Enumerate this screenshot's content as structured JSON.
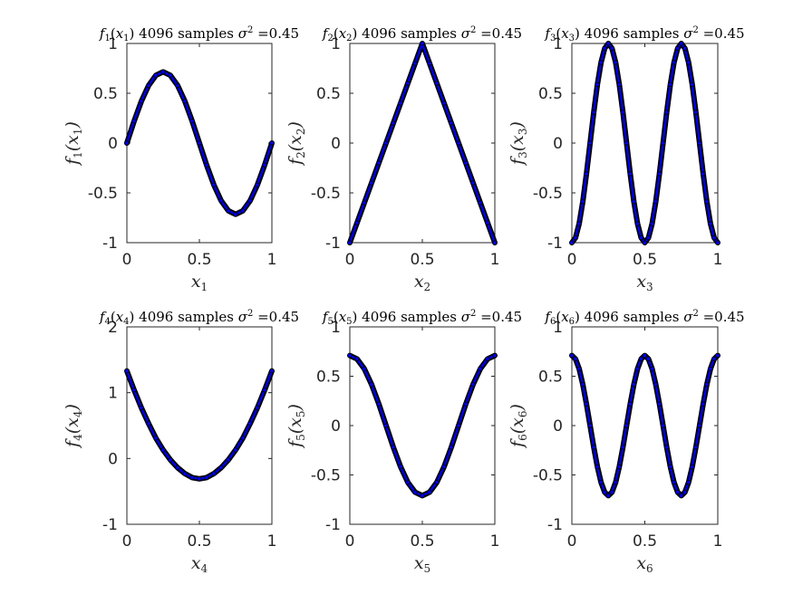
{
  "colors": {
    "background": "#ffffff",
    "axis": "#262626",
    "marker_edge": "#000000",
    "curve": "#0000ff"
  },
  "chart_data": [
    {
      "type": "line",
      "title": "f1(x1) 4096 samples σ^2 =0.45",
      "title_parts": {
        "func": "f",
        "sub": "1",
        "var": "x",
        "vsub": "1",
        "rest": "4096 samples",
        "sigma": "σ",
        "sup": "2",
        "eq": "=0.45"
      },
      "xlabel": "x1",
      "ylabel": "f1(x1)",
      "xlim": [
        0,
        1
      ],
      "ylim": [
        -1,
        1
      ],
      "xticks": [
        0,
        0.5,
        1
      ],
      "xticklabels": [
        "0",
        "0.5",
        "1"
      ],
      "yticks": [
        -1,
        -0.5,
        0,
        0.5,
        1
      ],
      "yticklabels": [
        "-1",
        "-0.5",
        "0",
        "0.5",
        "1"
      ],
      "series": [
        {
          "x": [
            0,
            0.05,
            0.1,
            0.15,
            0.2,
            0.25,
            0.3,
            0.35,
            0.4,
            0.45,
            0.5,
            0.55,
            0.6,
            0.65,
            0.7,
            0.75,
            0.8,
            0.85,
            0.9,
            0.95,
            1
          ],
          "y": [
            0,
            0.221,
            0.42,
            0.578,
            0.68,
            0.715,
            0.68,
            0.578,
            0.42,
            0.221,
            0,
            -0.221,
            -0.42,
            -0.578,
            -0.68,
            -0.715,
            -0.68,
            -0.578,
            -0.42,
            -0.221,
            0
          ]
        }
      ]
    },
    {
      "type": "line",
      "title": "f2(x2) 4096 samples σ^2 =0.45",
      "title_parts": {
        "func": "f",
        "sub": "2",
        "var": "x",
        "vsub": "2",
        "rest": "4096 samples",
        "sigma": "σ",
        "sup": "2",
        "eq": "=0.45"
      },
      "xlabel": "x2",
      "ylabel": "f2(x2)",
      "xlim": [
        0,
        1
      ],
      "ylim": [
        -1,
        1
      ],
      "xticks": [
        0,
        0.5,
        1
      ],
      "xticklabels": [
        "0",
        "0.5",
        "1"
      ],
      "yticks": [
        -1,
        -0.5,
        0,
        0.5,
        1
      ],
      "yticklabels": [
        "-1",
        "-0.5",
        "0",
        "0.5",
        "1"
      ],
      "series": [
        {
          "x": [
            0,
            0.05,
            0.1,
            0.15,
            0.2,
            0.25,
            0.3,
            0.35,
            0.4,
            0.45,
            0.5,
            0.55,
            0.6,
            0.65,
            0.7,
            0.75,
            0.8,
            0.85,
            0.9,
            0.95,
            1
          ],
          "y": [
            -1,
            -0.8,
            -0.6,
            -0.4,
            -0.2,
            0,
            0.2,
            0.4,
            0.6,
            0.8,
            1,
            0.8,
            0.6,
            0.4,
            0.2,
            0,
            -0.2,
            -0.4,
            -0.6,
            -0.8,
            -1
          ]
        }
      ]
    },
    {
      "type": "line",
      "title": "f3(x3) 4096 samples σ^2 =0.45",
      "title_parts": {
        "func": "f",
        "sub": "3",
        "var": "x",
        "vsub": "3",
        "rest": "4096 samples",
        "sigma": "σ",
        "sup": "2",
        "eq": "=0.45"
      },
      "xlabel": "x3",
      "ylabel": "f3(x3)",
      "xlim": [
        0,
        1
      ],
      "ylim": [
        -1,
        1
      ],
      "xticks": [
        0,
        0.5,
        1
      ],
      "xticklabels": [
        "0",
        "0.5",
        "1"
      ],
      "yticks": [
        -1,
        -0.5,
        0,
        0.5,
        1
      ],
      "yticklabels": [
        "-1",
        "-0.5",
        "0",
        "0.5",
        "1"
      ],
      "series": [
        {
          "x": [
            0,
            0.025,
            0.05,
            0.075,
            0.1,
            0.125,
            0.15,
            0.175,
            0.2,
            0.225,
            0.25,
            0.275,
            0.3,
            0.325,
            0.35,
            0.375,
            0.4,
            0.425,
            0.45,
            0.475,
            0.5,
            0.525,
            0.55,
            0.575,
            0.6,
            0.625,
            0.65,
            0.675,
            0.7,
            0.725,
            0.75,
            0.775,
            0.8,
            0.825,
            0.85,
            0.875,
            0.9,
            0.925,
            0.95,
            0.975,
            1
          ],
          "y": [
            -1,
            -0.951,
            -0.809,
            -0.588,
            -0.309,
            0,
            0.309,
            0.588,
            0.809,
            0.951,
            1,
            0.951,
            0.809,
            0.588,
            0.309,
            0,
            -0.309,
            -0.588,
            -0.809,
            -0.951,
            -1,
            -0.951,
            -0.809,
            -0.588,
            -0.309,
            0,
            0.309,
            0.588,
            0.809,
            0.951,
            1,
            0.951,
            0.809,
            0.588,
            0.309,
            0,
            -0.309,
            -0.588,
            -0.809,
            -0.951,
            -1
          ]
        }
      ]
    },
    {
      "type": "line",
      "title": "f4(x4) 4096 samples σ^2 =0.45",
      "title_parts": {
        "func": "f",
        "sub": "4",
        "var": "x",
        "vsub": "4",
        "rest": "4096 samples",
        "sigma": "σ",
        "sup": "2",
        "eq": "=0.45"
      },
      "xlabel": "x4",
      "ylabel": "f4(x4)",
      "xlim": [
        0,
        1
      ],
      "ylim": [
        -1,
        2
      ],
      "xticks": [
        0,
        0.5,
        1
      ],
      "xticklabels": [
        "0",
        "0.5",
        "1"
      ],
      "yticks": [
        -1,
        0,
        1,
        2
      ],
      "yticklabels": [
        "-1",
        "0",
        "1",
        "2"
      ],
      "series": [
        {
          "x": [
            0,
            0.05,
            0.1,
            0.15,
            0.2,
            0.25,
            0.3,
            0.35,
            0.4,
            0.45,
            0.5,
            0.55,
            0.6,
            0.65,
            0.7,
            0.75,
            0.8,
            0.85,
            0.9,
            0.95,
            1
          ],
          "y": [
            1.33,
            1.04,
            0.77,
            0.53,
            0.31,
            0.13,
            -0.02,
            -0.14,
            -0.23,
            -0.29,
            -0.31,
            -0.29,
            -0.23,
            -0.14,
            -0.02,
            0.13,
            0.31,
            0.53,
            0.77,
            1.04,
            1.33
          ]
        }
      ]
    },
    {
      "type": "line",
      "title": "f5(x5) 4096 samples σ^2 =0.45",
      "title_parts": {
        "func": "f",
        "sub": "5",
        "var": "x",
        "vsub": "5",
        "rest": "4096 samples",
        "sigma": "σ",
        "sup": "2",
        "eq": "=0.45"
      },
      "xlabel": "x5",
      "ylabel": "f5(x5)",
      "xlim": [
        0,
        1
      ],
      "ylim": [
        -1,
        1
      ],
      "xticks": [
        0,
        0.5,
        1
      ],
      "xticklabels": [
        "0",
        "0.5",
        "1"
      ],
      "yticks": [
        -1,
        -0.5,
        0,
        0.5,
        1
      ],
      "yticklabels": [
        "-1",
        "-0.5",
        "0",
        "0.5",
        "1"
      ],
      "series": [
        {
          "x": [
            0,
            0.05,
            0.1,
            0.15,
            0.2,
            0.25,
            0.3,
            0.35,
            0.4,
            0.45,
            0.5,
            0.55,
            0.6,
            0.65,
            0.7,
            0.75,
            0.8,
            0.85,
            0.9,
            0.95,
            1
          ],
          "y": [
            0.71,
            0.675,
            0.575,
            0.417,
            0.219,
            0,
            -0.219,
            -0.417,
            -0.575,
            -0.675,
            -0.71,
            -0.675,
            -0.575,
            -0.417,
            -0.219,
            0,
            0.219,
            0.417,
            0.575,
            0.675,
            0.71
          ]
        }
      ]
    },
    {
      "type": "line",
      "title": "f6(x6) 4096 samples σ^2 =0.45",
      "title_parts": {
        "func": "f",
        "sub": "6",
        "var": "x",
        "vsub": "6",
        "rest": "4096 samples",
        "sigma": "σ",
        "sup": "2",
        "eq": "=0.45"
      },
      "xlabel": "x6",
      "ylabel": "f6(x6)",
      "xlim": [
        0,
        1
      ],
      "ylim": [
        -1,
        1
      ],
      "xticks": [
        0,
        0.5,
        1
      ],
      "xticklabels": [
        "0",
        "0.5",
        "1"
      ],
      "yticks": [
        -1,
        -0.5,
        0,
        0.5,
        1
      ],
      "yticklabels": [
        "-1",
        "-0.5",
        "0",
        "0.5",
        "1"
      ],
      "series": [
        {
          "x": [
            0,
            0.025,
            0.05,
            0.075,
            0.1,
            0.125,
            0.15,
            0.175,
            0.2,
            0.225,
            0.25,
            0.275,
            0.3,
            0.325,
            0.35,
            0.375,
            0.4,
            0.425,
            0.45,
            0.475,
            0.5,
            0.525,
            0.55,
            0.575,
            0.6,
            0.625,
            0.65,
            0.675,
            0.7,
            0.725,
            0.75,
            0.775,
            0.8,
            0.825,
            0.85,
            0.875,
            0.9,
            0.925,
            0.95,
            0.975,
            1
          ],
          "y": [
            0.71,
            0.675,
            0.575,
            0.417,
            0.219,
            0,
            -0.219,
            -0.417,
            -0.575,
            -0.675,
            -0.71,
            -0.675,
            -0.575,
            -0.417,
            -0.219,
            0,
            0.219,
            0.417,
            0.575,
            0.675,
            0.71,
            0.675,
            0.575,
            0.417,
            0.219,
            0,
            -0.219,
            -0.417,
            -0.575,
            -0.675,
            -0.71,
            -0.675,
            -0.575,
            -0.417,
            -0.219,
            0,
            0.219,
            0.417,
            0.575,
            0.675,
            0.71
          ]
        }
      ]
    }
  ]
}
